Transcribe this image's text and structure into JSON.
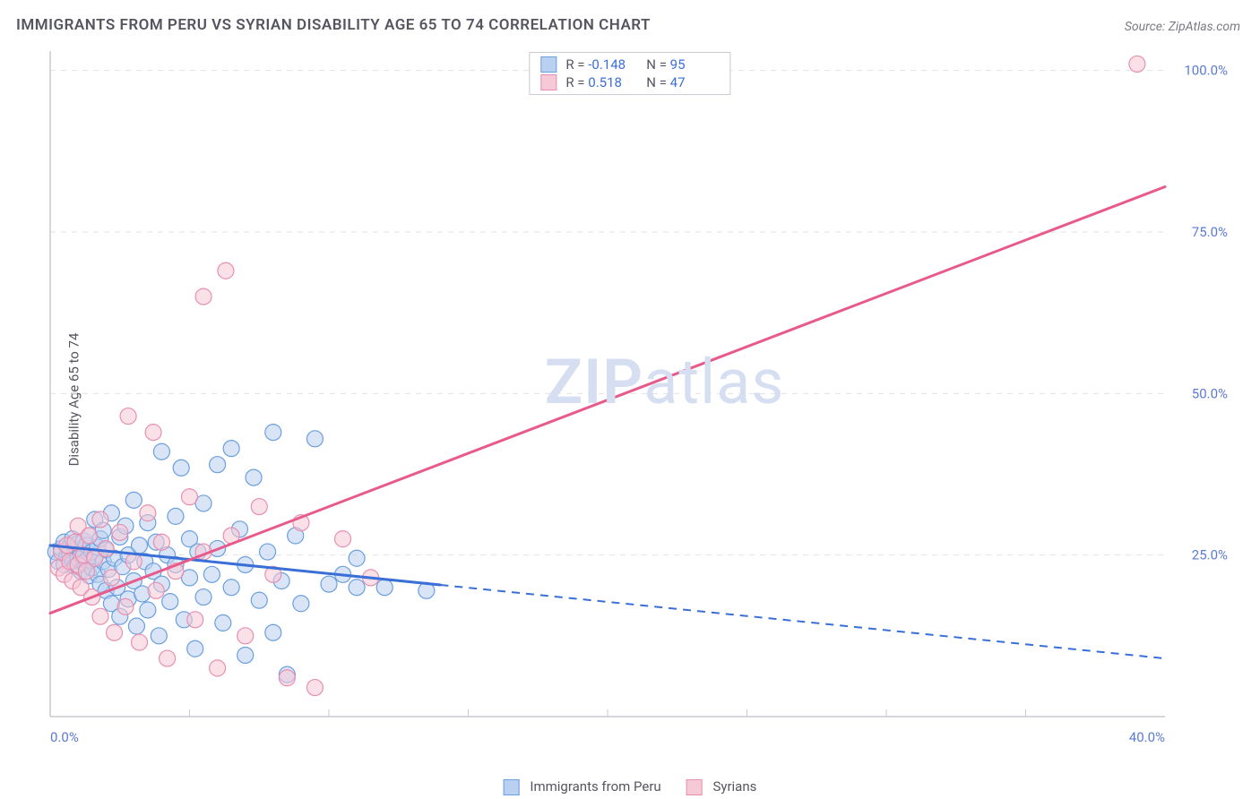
{
  "title": "IMMIGRANTS FROM PERU VS SYRIAN DISABILITY AGE 65 TO 74 CORRELATION CHART",
  "source_label": "Source: ZipAtlas.com",
  "ylabel": "Disability Age 65 to 74",
  "watermark": {
    "bold": "ZIP",
    "rest": "atlas"
  },
  "chart": {
    "type": "scatter-correlation",
    "background_color": "#ffffff",
    "grid_color": "#e1e1e6",
    "axis_color": "#c9c9d0",
    "tick_color": "#5b7bd5",
    "label_color": "#555560",
    "title_fontsize": 17,
    "label_fontsize": 15,
    "xlim": [
      0,
      40
    ],
    "ylim": [
      0,
      103
    ],
    "x_ticks": [
      {
        "v": 0,
        "label": "0.0%"
      },
      {
        "v": 40,
        "label": "40.0%"
      }
    ],
    "x_minor_ticks": [
      5,
      10,
      15,
      20,
      25,
      30,
      35
    ],
    "y_ticks": [
      {
        "v": 25,
        "label": "25.0%"
      },
      {
        "v": 50,
        "label": "50.0%"
      },
      {
        "v": 75,
        "label": "75.0%"
      },
      {
        "v": 100,
        "label": "100.0%"
      }
    ],
    "series": [
      {
        "name": "Immigrants from Peru",
        "color_fill": "#b9d0f0",
        "color_stroke": "#6a9fe0",
        "line_color": "#3a6fd8",
        "marker_radius": 9,
        "fill_opacity": 0.55,
        "R": "-0.148",
        "N": "95",
        "trend": {
          "x1": 0,
          "y1": 26.5,
          "x2": 40,
          "y2": 9.0,
          "solid_until_x": 14
        },
        "points": [
          [
            0.2,
            25.5
          ],
          [
            0.3,
            24.0
          ],
          [
            0.4,
            26.0
          ],
          [
            0.5,
            23.5
          ],
          [
            0.5,
            27.0
          ],
          [
            0.6,
            24.8
          ],
          [
            0.7,
            25.2
          ],
          [
            0.7,
            26.3
          ],
          [
            0.8,
            24.0
          ],
          [
            0.8,
            27.5
          ],
          [
            0.9,
            23.2
          ],
          [
            0.9,
            25.8
          ],
          [
            1.0,
            24.5
          ],
          [
            1.0,
            26.8
          ],
          [
            1.1,
            22.5
          ],
          [
            1.1,
            25.0
          ],
          [
            1.2,
            27.2
          ],
          [
            1.2,
            23.8
          ],
          [
            1.3,
            26.5
          ],
          [
            1.3,
            24.2
          ],
          [
            1.4,
            28.0
          ],
          [
            1.4,
            21.8
          ],
          [
            1.5,
            25.5
          ],
          [
            1.5,
            23.0
          ],
          [
            1.6,
            30.5
          ],
          [
            1.6,
            24.8
          ],
          [
            1.7,
            22.0
          ],
          [
            1.7,
            26.2
          ],
          [
            1.8,
            27.5
          ],
          [
            1.8,
            20.5
          ],
          [
            1.9,
            24.0
          ],
          [
            1.9,
            28.8
          ],
          [
            2.0,
            19.5
          ],
          [
            2.0,
            25.8
          ],
          [
            2.1,
            22.8
          ],
          [
            2.2,
            31.5
          ],
          [
            2.2,
            17.5
          ],
          [
            2.3,
            24.5
          ],
          [
            2.4,
            20.0
          ],
          [
            2.5,
            27.8
          ],
          [
            2.5,
            15.5
          ],
          [
            2.6,
            23.2
          ],
          [
            2.7,
            29.5
          ],
          [
            2.8,
            18.2
          ],
          [
            2.8,
            25.0
          ],
          [
            3.0,
            33.5
          ],
          [
            3.0,
            21.0
          ],
          [
            3.1,
            14.0
          ],
          [
            3.2,
            26.5
          ],
          [
            3.3,
            19.0
          ],
          [
            3.4,
            24.0
          ],
          [
            3.5,
            30.0
          ],
          [
            3.5,
            16.5
          ],
          [
            3.7,
            22.5
          ],
          [
            3.8,
            27.0
          ],
          [
            3.9,
            12.5
          ],
          [
            4.0,
            41.0
          ],
          [
            4.0,
            20.5
          ],
          [
            4.2,
            25.0
          ],
          [
            4.3,
            17.8
          ],
          [
            4.5,
            31.0
          ],
          [
            4.5,
            23.5
          ],
          [
            4.7,
            38.5
          ],
          [
            4.8,
            15.0
          ],
          [
            5.0,
            27.5
          ],
          [
            5.0,
            21.5
          ],
          [
            5.2,
            10.5
          ],
          [
            5.3,
            25.5
          ],
          [
            5.5,
            33.0
          ],
          [
            5.5,
            18.5
          ],
          [
            5.8,
            22.0
          ],
          [
            6.0,
            39.0
          ],
          [
            6.0,
            26.0
          ],
          [
            6.2,
            14.5
          ],
          [
            6.5,
            41.5
          ],
          [
            6.5,
            20.0
          ],
          [
            6.8,
            29.0
          ],
          [
            7.0,
            23.5
          ],
          [
            7.0,
            9.5
          ],
          [
            7.3,
            37.0
          ],
          [
            7.5,
            18.0
          ],
          [
            7.8,
            25.5
          ],
          [
            8.0,
            44.0
          ],
          [
            8.0,
            13.0
          ],
          [
            8.3,
            21.0
          ],
          [
            8.5,
            6.5
          ],
          [
            8.8,
            28.0
          ],
          [
            9.0,
            17.5
          ],
          [
            9.5,
            43.0
          ],
          [
            10.0,
            20.5
          ],
          [
            10.5,
            22.0
          ],
          [
            11.0,
            24.5
          ],
          [
            11.0,
            20.0
          ],
          [
            12.0,
            20.0
          ],
          [
            13.5,
            19.5
          ]
        ]
      },
      {
        "name": "Syrians",
        "color_fill": "#f6c9d6",
        "color_stroke": "#e88fb0",
        "line_color": "#e85a8a",
        "marker_radius": 9,
        "fill_opacity": 0.55,
        "R": "0.518",
        "N": "47",
        "trend": {
          "x1": 0,
          "y1": 16.0,
          "x2": 40,
          "y2": 82.0,
          "solid_until_x": 40
        },
        "points": [
          [
            0.3,
            23.0
          ],
          [
            0.4,
            25.5
          ],
          [
            0.5,
            22.0
          ],
          [
            0.6,
            26.5
          ],
          [
            0.7,
            24.0
          ],
          [
            0.8,
            21.0
          ],
          [
            0.9,
            27.0
          ],
          [
            1.0,
            23.5
          ],
          [
            1.0,
            29.5
          ],
          [
            1.1,
            20.0
          ],
          [
            1.2,
            25.0
          ],
          [
            1.3,
            22.5
          ],
          [
            1.4,
            28.0
          ],
          [
            1.5,
            18.5
          ],
          [
            1.6,
            24.5
          ],
          [
            1.8,
            30.5
          ],
          [
            1.8,
            15.5
          ],
          [
            2.0,
            26.0
          ],
          [
            2.2,
            21.5
          ],
          [
            2.3,
            13.0
          ],
          [
            2.5,
            28.5
          ],
          [
            2.7,
            17.0
          ],
          [
            2.8,
            46.5
          ],
          [
            3.0,
            24.0
          ],
          [
            3.2,
            11.5
          ],
          [
            3.5,
            31.5
          ],
          [
            3.7,
            44.0
          ],
          [
            3.8,
            19.5
          ],
          [
            4.0,
            27.0
          ],
          [
            4.2,
            9.0
          ],
          [
            4.5,
            22.5
          ],
          [
            5.0,
            34.0
          ],
          [
            5.2,
            15.0
          ],
          [
            5.5,
            65.0
          ],
          [
            5.5,
            25.5
          ],
          [
            6.0,
            7.5
          ],
          [
            6.3,
            69.0
          ],
          [
            6.5,
            28.0
          ],
          [
            7.0,
            12.5
          ],
          [
            7.5,
            32.5
          ],
          [
            8.0,
            22.0
          ],
          [
            8.5,
            6.0
          ],
          [
            9.0,
            30.0
          ],
          [
            9.5,
            4.5
          ],
          [
            10.5,
            27.5
          ],
          [
            11.5,
            21.5
          ],
          [
            39.0,
            101.0
          ]
        ]
      }
    ]
  },
  "legend_top": {
    "r_label": "R =",
    "n_label": "N ="
  },
  "legend_bottom": {
    "items": [
      "Immigrants from Peru",
      "Syrians"
    ]
  }
}
